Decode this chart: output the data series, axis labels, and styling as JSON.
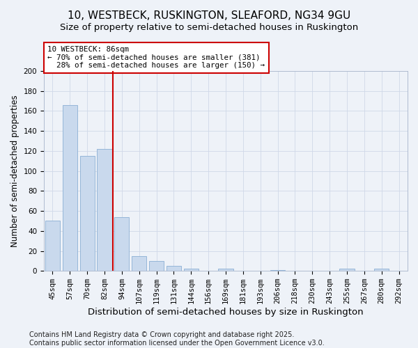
{
  "title": "10, WESTBECK, RUSKINGTON, SLEAFORD, NG34 9GU",
  "subtitle": "Size of property relative to semi-detached houses in Ruskington",
  "xlabel": "Distribution of semi-detached houses by size in Ruskington",
  "ylabel": "Number of semi-detached properties",
  "categories": [
    "45sqm",
    "57sqm",
    "70sqm",
    "82sqm",
    "94sqm",
    "107sqm",
    "119sqm",
    "131sqm",
    "144sqm",
    "156sqm",
    "169sqm",
    "181sqm",
    "193sqm",
    "206sqm",
    "218sqm",
    "230sqm",
    "243sqm",
    "255sqm",
    "267sqm",
    "280sqm",
    "292sqm"
  ],
  "values": [
    50,
    166,
    115,
    122,
    54,
    15,
    10,
    5,
    2,
    0,
    2,
    0,
    0,
    1,
    0,
    0,
    0,
    2,
    0,
    2,
    0
  ],
  "bar_color": "#c9d9ed",
  "bar_edge_color": "#8aafd4",
  "property_label": "10 WESTBECK: 86sqm",
  "vline_x_index": 3.5,
  "pct_smaller": 70,
  "count_smaller": 381,
  "pct_larger": 28,
  "count_larger": 150,
  "vline_color": "#cc0000",
  "annotation_box_color": "#cc0000",
  "grid_color": "#d0d8e8",
  "background_color": "#eef2f8",
  "footnote": "Contains HM Land Registry data © Crown copyright and database right 2025.\nContains public sector information licensed under the Open Government Licence v3.0.",
  "ylim": [
    0,
    200
  ],
  "yticks": [
    0,
    20,
    40,
    60,
    80,
    100,
    120,
    140,
    160,
    180,
    200
  ],
  "title_fontsize": 11,
  "subtitle_fontsize": 9.5,
  "xlabel_fontsize": 9.5,
  "ylabel_fontsize": 8.5,
  "tick_fontsize": 7.5,
  "footnote_fontsize": 7
}
